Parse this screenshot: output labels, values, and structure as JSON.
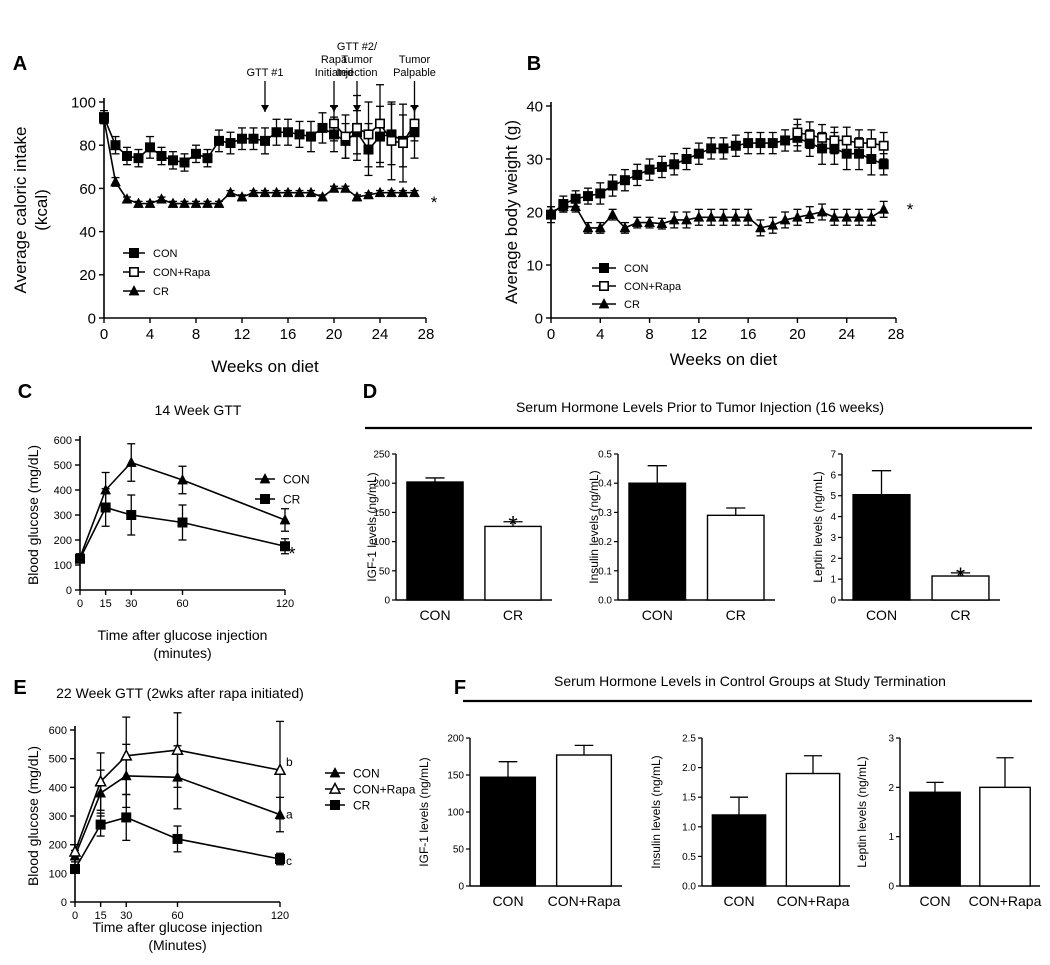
{
  "chart_data": [
    {
      "id": "A",
      "type": "line",
      "panel_label": "A",
      "xlabel": "Weeks on diet",
      "ylabel": "Average caloric intake (kcal)",
      "ylabel_lines": [
        "Average caloric intake",
        "(kcal)"
      ],
      "xlim": [
        0,
        28
      ],
      "ylim": [
        0,
        100
      ],
      "xticks": [
        0,
        4,
        8,
        12,
        16,
        20,
        24,
        28
      ],
      "yticks": [
        0,
        20,
        40,
        60,
        80,
        100
      ],
      "significance": "*",
      "series": [
        {
          "name": "CON",
          "marker": "square-filled",
          "x": [
            0,
            1,
            2,
            3,
            4,
            5,
            6,
            7,
            8,
            9,
            10,
            11,
            12,
            13,
            14,
            15,
            16,
            17,
            18,
            19,
            20,
            21,
            22,
            23,
            24,
            25,
            26,
            27
          ],
          "y": [
            93,
            80,
            75,
            74,
            79,
            75,
            73,
            72,
            76,
            74,
            82,
            81,
            83,
            83,
            82,
            86,
            86,
            85,
            84,
            88,
            85,
            82,
            86,
            78,
            84,
            85,
            82,
            86
          ],
          "err": [
            3,
            4,
            4,
            4,
            5,
            4,
            4,
            4,
            4,
            4,
            5,
            5,
            5,
            5,
            6,
            6,
            6,
            6,
            7,
            7,
            8,
            8,
            10,
            12,
            14,
            14,
            12,
            12
          ]
        },
        {
          "name": "CON+Rapa",
          "marker": "square-open",
          "x": [
            20,
            21,
            22,
            23,
            24,
            25,
            26,
            27
          ],
          "y": [
            90,
            84,
            88,
            85,
            90,
            82,
            81,
            90
          ],
          "err": [
            8,
            10,
            15,
            15,
            18,
            18,
            18,
            8
          ]
        },
        {
          "name": "CR",
          "marker": "triangle-filled",
          "x": [
            0,
            1,
            2,
            3,
            4,
            5,
            6,
            7,
            8,
            9,
            10,
            11,
            12,
            13,
            14,
            15,
            16,
            17,
            18,
            19,
            20,
            21,
            22,
            23,
            24,
            25,
            26,
            27
          ],
          "y": [
            92,
            63,
            55,
            53,
            53,
            55,
            53,
            53,
            53,
            53,
            53,
            58,
            56,
            58,
            58,
            58,
            58,
            58,
            58,
            56,
            60,
            60,
            56,
            57,
            58,
            58,
            58,
            58
          ],
          "err": [
            2,
            2,
            1,
            1,
            1,
            1,
            1,
            1,
            1,
            1,
            1,
            1,
            1,
            1,
            1,
            1,
            1,
            1,
            1,
            1,
            1,
            1,
            1,
            1,
            1,
            1,
            1,
            1
          ]
        }
      ],
      "annotations": [
        {
          "text_lines": [
            "GTT #1"
          ],
          "x": 14
        },
        {
          "text_lines": [
            "Rapa",
            "Initiated"
          ],
          "x": 20
        },
        {
          "text_lines": [
            "GTT #2/",
            "Tumor",
            "Injection"
          ],
          "x": 22
        },
        {
          "text_lines": [
            "Tumor",
            "Palpable"
          ],
          "x": 27
        }
      ]
    },
    {
      "id": "B",
      "type": "line",
      "panel_label": "B",
      "xlabel": "Weeks on diet",
      "ylabel": "Average body weight (g)",
      "xlim": [
        0,
        28
      ],
      "ylim": [
        0,
        40
      ],
      "xticks": [
        0,
        4,
        8,
        12,
        16,
        20,
        24,
        28
      ],
      "yticks": [
        0,
        10,
        20,
        30,
        40
      ],
      "significance": "*",
      "series": [
        {
          "name": "CON",
          "marker": "square-filled",
          "x": [
            0,
            1,
            2,
            3,
            4,
            5,
            6,
            7,
            8,
            9,
            10,
            11,
            12,
            13,
            14,
            15,
            16,
            17,
            18,
            19,
            20,
            21,
            22,
            23,
            24,
            25,
            26,
            27
          ],
          "y": [
            19.5,
            21.5,
            22.5,
            23,
            23.5,
            25,
            26,
            27,
            28,
            28.5,
            29,
            30,
            31,
            32,
            32,
            32.5,
            33,
            33,
            33,
            33.5,
            34,
            33,
            32,
            32,
            31,
            31,
            30,
            29
          ],
          "err": [
            1.5,
            1.5,
            1.5,
            1.5,
            2,
            2,
            2,
            2,
            2,
            2,
            2,
            2,
            2,
            2,
            2,
            2,
            2,
            2,
            2,
            2,
            2.5,
            2.5,
            3,
            3,
            3,
            3,
            3,
            2
          ]
        },
        {
          "name": "CON+Rapa",
          "marker": "square-open",
          "x": [
            20,
            21,
            22,
            23,
            24,
            25,
            26,
            27
          ],
          "y": [
            35,
            34.5,
            34,
            33.5,
            33.5,
            33,
            33,
            32.5
          ],
          "err": [
            2.5,
            2.5,
            2.5,
            2.5,
            2.5,
            2.5,
            2.5,
            2.5
          ]
        },
        {
          "name": "CR",
          "marker": "triangle-filled",
          "x": [
            0,
            1,
            2,
            3,
            4,
            5,
            6,
            7,
            8,
            9,
            10,
            11,
            12,
            13,
            14,
            15,
            16,
            17,
            18,
            19,
            20,
            21,
            22,
            23,
            24,
            25,
            26,
            27
          ],
          "y": [
            20,
            21,
            21,
            17,
            17,
            19.5,
            17,
            18,
            18,
            17.8,
            18.5,
            18.5,
            19,
            19,
            19,
            19,
            19,
            17,
            17.5,
            18.5,
            19,
            19.5,
            20,
            19,
            19,
            19,
            19,
            20.5
          ],
          "err": [
            1,
            1,
            1,
            1,
            1,
            1,
            1,
            1,
            1,
            1,
            1.5,
            1.5,
            1.5,
            1.5,
            1.5,
            1.5,
            1.5,
            1.5,
            1.5,
            1.5,
            1.5,
            1.5,
            1.5,
            1.5,
            1.5,
            1.5,
            1.5,
            1.5
          ]
        }
      ]
    },
    {
      "id": "C",
      "type": "line",
      "panel_label": "C",
      "title": "14 Week GTT",
      "xlabel": "Time after glucose injection",
      "xlabel2": "(minutes)",
      "ylabel": "Blood glucose (mg/dL)",
      "xlim": [
        0,
        120
      ],
      "ylim": [
        0,
        600
      ],
      "xticks": [
        0,
        15,
        30,
        60,
        120
      ],
      "yticks": [
        0,
        100,
        200,
        300,
        400,
        500,
        600
      ],
      "significance": "*",
      "series": [
        {
          "name": "CON",
          "marker": "triangle-filled",
          "x": [
            0,
            15,
            30,
            60,
            120
          ],
          "y": [
            130,
            400,
            510,
            440,
            280
          ],
          "err": [
            15,
            70,
            75,
            55,
            45
          ]
        },
        {
          "name": "CR",
          "marker": "square-filled",
          "x": [
            0,
            15,
            30,
            60,
            120
          ],
          "y": [
            125,
            330,
            300,
            270,
            175
          ],
          "err": [
            15,
            75,
            80,
            70,
            30
          ]
        }
      ]
    },
    {
      "id": "D",
      "type": "bar",
      "panel_label": "D",
      "header": "Serum Hormone Levels Prior to Tumor Injection (16 weeks)",
      "subplots": [
        {
          "categories": [
            "CON",
            "CR"
          ],
          "values": [
            202,
            126
          ],
          "err": [
            7,
            8
          ],
          "ylabel": "IGF-1 levels (ng/mL)",
          "ylim": [
            0,
            250
          ],
          "yticks": [
            0,
            50,
            100,
            150,
            200,
            250
          ],
          "tick_labels": [
            "0",
            "50",
            "100",
            "150",
            "200",
            "250"
          ],
          "significance": "*"
        },
        {
          "categories": [
            "CON",
            "CR"
          ],
          "values": [
            0.4,
            0.29
          ],
          "err": [
            0.06,
            0.025
          ],
          "ylabel": "Insulin levels (ng/mL)",
          "ylim": [
            0,
            0.5
          ],
          "yticks": [
            0,
            0.1,
            0.2,
            0.3,
            0.4,
            0.5
          ],
          "tick_labels": [
            "0.0",
            "0.1",
            "0.2",
            "0.3",
            "0.4",
            "0.5"
          ]
        },
        {
          "categories": [
            "CON",
            "CR"
          ],
          "values": [
            5.05,
            1.15
          ],
          "err": [
            1.15,
            0.15
          ],
          "ylabel": "Leptin levels (ng/mL)",
          "ylim": [
            0,
            7
          ],
          "yticks": [
            0,
            1,
            2,
            3,
            4,
            5,
            6,
            7
          ],
          "tick_labels": [
            "0",
            "1",
            "2",
            "3",
            "4",
            "5",
            "6",
            "7"
          ],
          "significance": "*"
        }
      ]
    },
    {
      "id": "E",
      "type": "line",
      "panel_label": "E",
      "title": "22 Week GTT (2wks after rapa initiated)",
      "xlabel": "Time after glucose injection",
      "xlabel2": "(Minutes)",
      "ylabel": "Blood glucose (mg/dL)",
      "xlim": [
        0,
        120
      ],
      "ylim": [
        0,
        600
      ],
      "xticks": [
        0,
        15,
        30,
        60,
        120
      ],
      "yticks": [
        0,
        100,
        200,
        300,
        400,
        500,
        600
      ],
      "series": [
        {
          "name": "CON",
          "marker": "triangle-filled",
          "tag": "a",
          "x": [
            0,
            15,
            30,
            60,
            120
          ],
          "y": [
            160,
            380,
            440,
            435,
            305
          ],
          "err": [
            20,
            80,
            110,
            110,
            60
          ]
        },
        {
          "name": "CON+Rapa",
          "marker": "triangle-open",
          "tag": "b",
          "x": [
            0,
            15,
            30,
            60,
            120
          ],
          "y": [
            175,
            420,
            510,
            530,
            460
          ],
          "err": [
            25,
            100,
            135,
            130,
            170
          ]
        },
        {
          "name": "CR",
          "marker": "square-filled",
          "tag": "c",
          "x": [
            0,
            15,
            30,
            60,
            120
          ],
          "y": [
            115,
            270,
            295,
            220,
            150
          ],
          "err": [
            15,
            40,
            80,
            45,
            20
          ]
        }
      ]
    },
    {
      "id": "F",
      "type": "bar",
      "panel_label": "F",
      "header": "Serum Hormone Levels in Control Groups at Study Termination",
      "subplots": [
        {
          "categories": [
            "CON",
            "CON+Rapa"
          ],
          "values": [
            147,
            177
          ],
          "err": [
            21,
            13
          ],
          "ylabel": "IGF-1 levels (ng/mL)",
          "ylim": [
            0,
            200
          ],
          "yticks": [
            0,
            50,
            100,
            150,
            200
          ],
          "tick_labels": [
            "0",
            "50",
            "100",
            "150",
            "200"
          ]
        },
        {
          "categories": [
            "CON",
            "CON+Rapa"
          ],
          "values": [
            1.2,
            1.9
          ],
          "err": [
            0.3,
            0.3
          ],
          "ylabel": "Insulin levels (ng/mL)",
          "ylim": [
            0,
            2.5
          ],
          "yticks": [
            0,
            0.5,
            1.0,
            1.5,
            2.0,
            2.5
          ],
          "tick_labels": [
            "0.0",
            "0.5",
            "1.0",
            "1.5",
            "2.0",
            "2.5"
          ]
        },
        {
          "categories": [
            "CON",
            "CON+Rapa"
          ],
          "values": [
            1.9,
            2.0
          ],
          "err": [
            0.2,
            0.6
          ],
          "ylabel": "Leptin levels (ng/mL)",
          "ylim": [
            0,
            3
          ],
          "yticks": [
            0,
            1,
            2,
            3
          ],
          "tick_labels": [
            "0",
            "1",
            "2",
            "3"
          ]
        }
      ]
    }
  ]
}
